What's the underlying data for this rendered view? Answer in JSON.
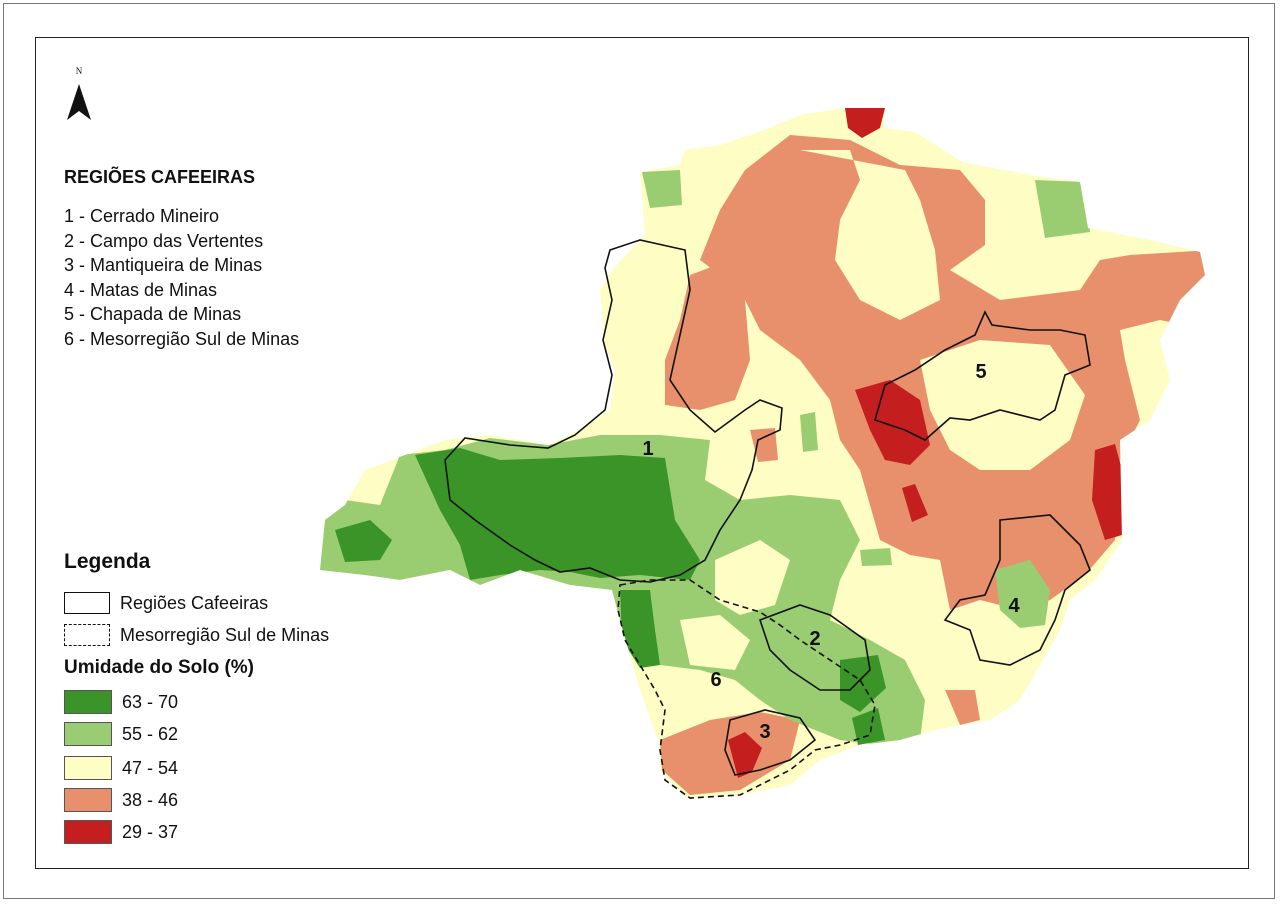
{
  "regions_title": "REGIÕES CAFEEIRAS",
  "regions": [
    {
      "label": "1 - Cerrado Mineiro"
    },
    {
      "label": "2 - Campo das Vertentes"
    },
    {
      "label": "3 - Mantiqueira de Minas"
    },
    {
      "label": "4 - Matas de Minas"
    },
    {
      "label": "5 - Chapada de Minas"
    },
    {
      "label": "6 - Mesorregião Sul de Minas"
    }
  ],
  "north_label": "N",
  "legend": {
    "title": "Legenda",
    "boundary_solid": "Regiões Cafeeiras",
    "boundary_dashed": "Mesorregião Sul de Minas",
    "moisture_title": "Umidade do Solo (%)",
    "classes": [
      {
        "range": "63 - 70",
        "color": "#3a9427"
      },
      {
        "range": "55 - 62",
        "color": "#9acd71"
      },
      {
        "range": "47 - 54",
        "color": "#fdfdc4"
      },
      {
        "range": "38 - 46",
        "color": "#e8906b"
      },
      {
        "range": "29 - 37",
        "color": "#c41e1e"
      }
    ]
  },
  "map_labels": {
    "r1": "1",
    "r2": "2",
    "r3": "3",
    "r4": "4",
    "r5": "5",
    "r6": "6"
  }
}
